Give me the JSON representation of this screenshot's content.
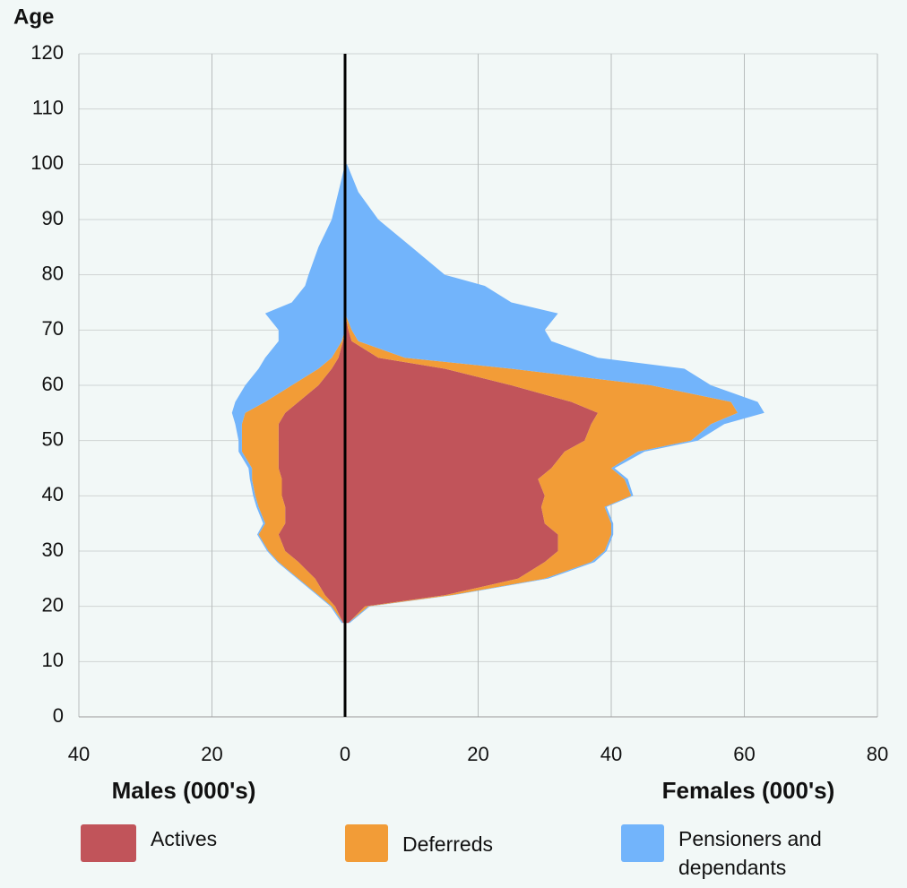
{
  "chart_data": {
    "type": "pyramid",
    "y_label": "Age",
    "x_label_left": "Males (000's)",
    "x_label_right": "Females (000's)",
    "y": [
      17,
      20,
      22,
      25,
      28,
      30,
      33,
      35,
      38,
      40,
      43,
      45,
      48,
      50,
      53,
      55,
      57,
      60,
      63,
      65,
      68,
      70,
      73,
      75,
      78,
      80,
      85,
      90,
      95,
      100
    ],
    "series": [
      {
        "name": "Actives",
        "color": "#c1545a",
        "males": [
          0.3,
          1.5,
          3,
          4.5,
          7,
          9,
          10,
          9,
          9,
          9.5,
          9.5,
          10,
          10,
          10,
          10,
          9,
          7,
          4,
          2,
          1,
          0.3,
          0,
          0,
          0,
          0,
          0,
          0,
          0,
          0,
          0
        ],
        "females": [
          0.5,
          3,
          15,
          26,
          30,
          32,
          32,
          30,
          29.5,
          30,
          29,
          31,
          33,
          36,
          37,
          38,
          34,
          25,
          15,
          5,
          1,
          0.5,
          0,
          0,
          0,
          0,
          0,
          0,
          0,
          0
        ]
      },
      {
        "name": "Deferreds",
        "color": "#f29c37",
        "males": [
          0,
          0.5,
          1,
          2.5,
          3,
          2.5,
          3,
          3,
          4,
          4,
          4.5,
          4,
          5.5,
          5.5,
          5.5,
          6,
          5,
          4,
          2,
          1,
          0.2,
          0,
          0,
          0,
          0,
          0,
          0,
          0,
          0,
          0
        ],
        "females": [
          0,
          0.5,
          1,
          4,
          7,
          7,
          8,
          10,
          9.5,
          13,
          13,
          9,
          11,
          16,
          18,
          21,
          24,
          21,
          10,
          4,
          1,
          0.5,
          0,
          0,
          0,
          0,
          0,
          0,
          0,
          0
        ]
      },
      {
        "name": "Pensioners and dependants",
        "color": "#72b4fb",
        "males": [
          0.2,
          0.2,
          0.2,
          0.2,
          0.2,
          0.2,
          0.2,
          0.3,
          0.3,
          0.3,
          0.3,
          0.5,
          0.5,
          0.5,
          1,
          2,
          4.5,
          7,
          9,
          10,
          9.5,
          10,
          12,
          8,
          6,
          5.5,
          4,
          2,
          1,
          0
        ],
        "females": [
          0.2,
          0.2,
          0.2,
          0.5,
          0.5,
          0.3,
          0.3,
          0.3,
          0.3,
          0.3,
          0.5,
          0.5,
          1,
          1,
          2,
          4,
          4,
          9,
          26,
          29,
          29,
          29,
          32,
          25,
          21,
          15,
          10,
          5,
          2,
          0.3
        ]
      }
    ],
    "xlim": [
      -40,
      80
    ],
    "xticks": [
      {
        "value": -40,
        "label": "40"
      },
      {
        "value": -20,
        "label": "20"
      },
      0,
      20,
      40,
      60,
      80
    ],
    "ylim": [
      0,
      120
    ],
    "yticks": [
      0,
      10,
      20,
      30,
      40,
      50,
      60,
      70,
      80,
      90,
      100,
      110,
      120
    ],
    "grid": true
  }
}
